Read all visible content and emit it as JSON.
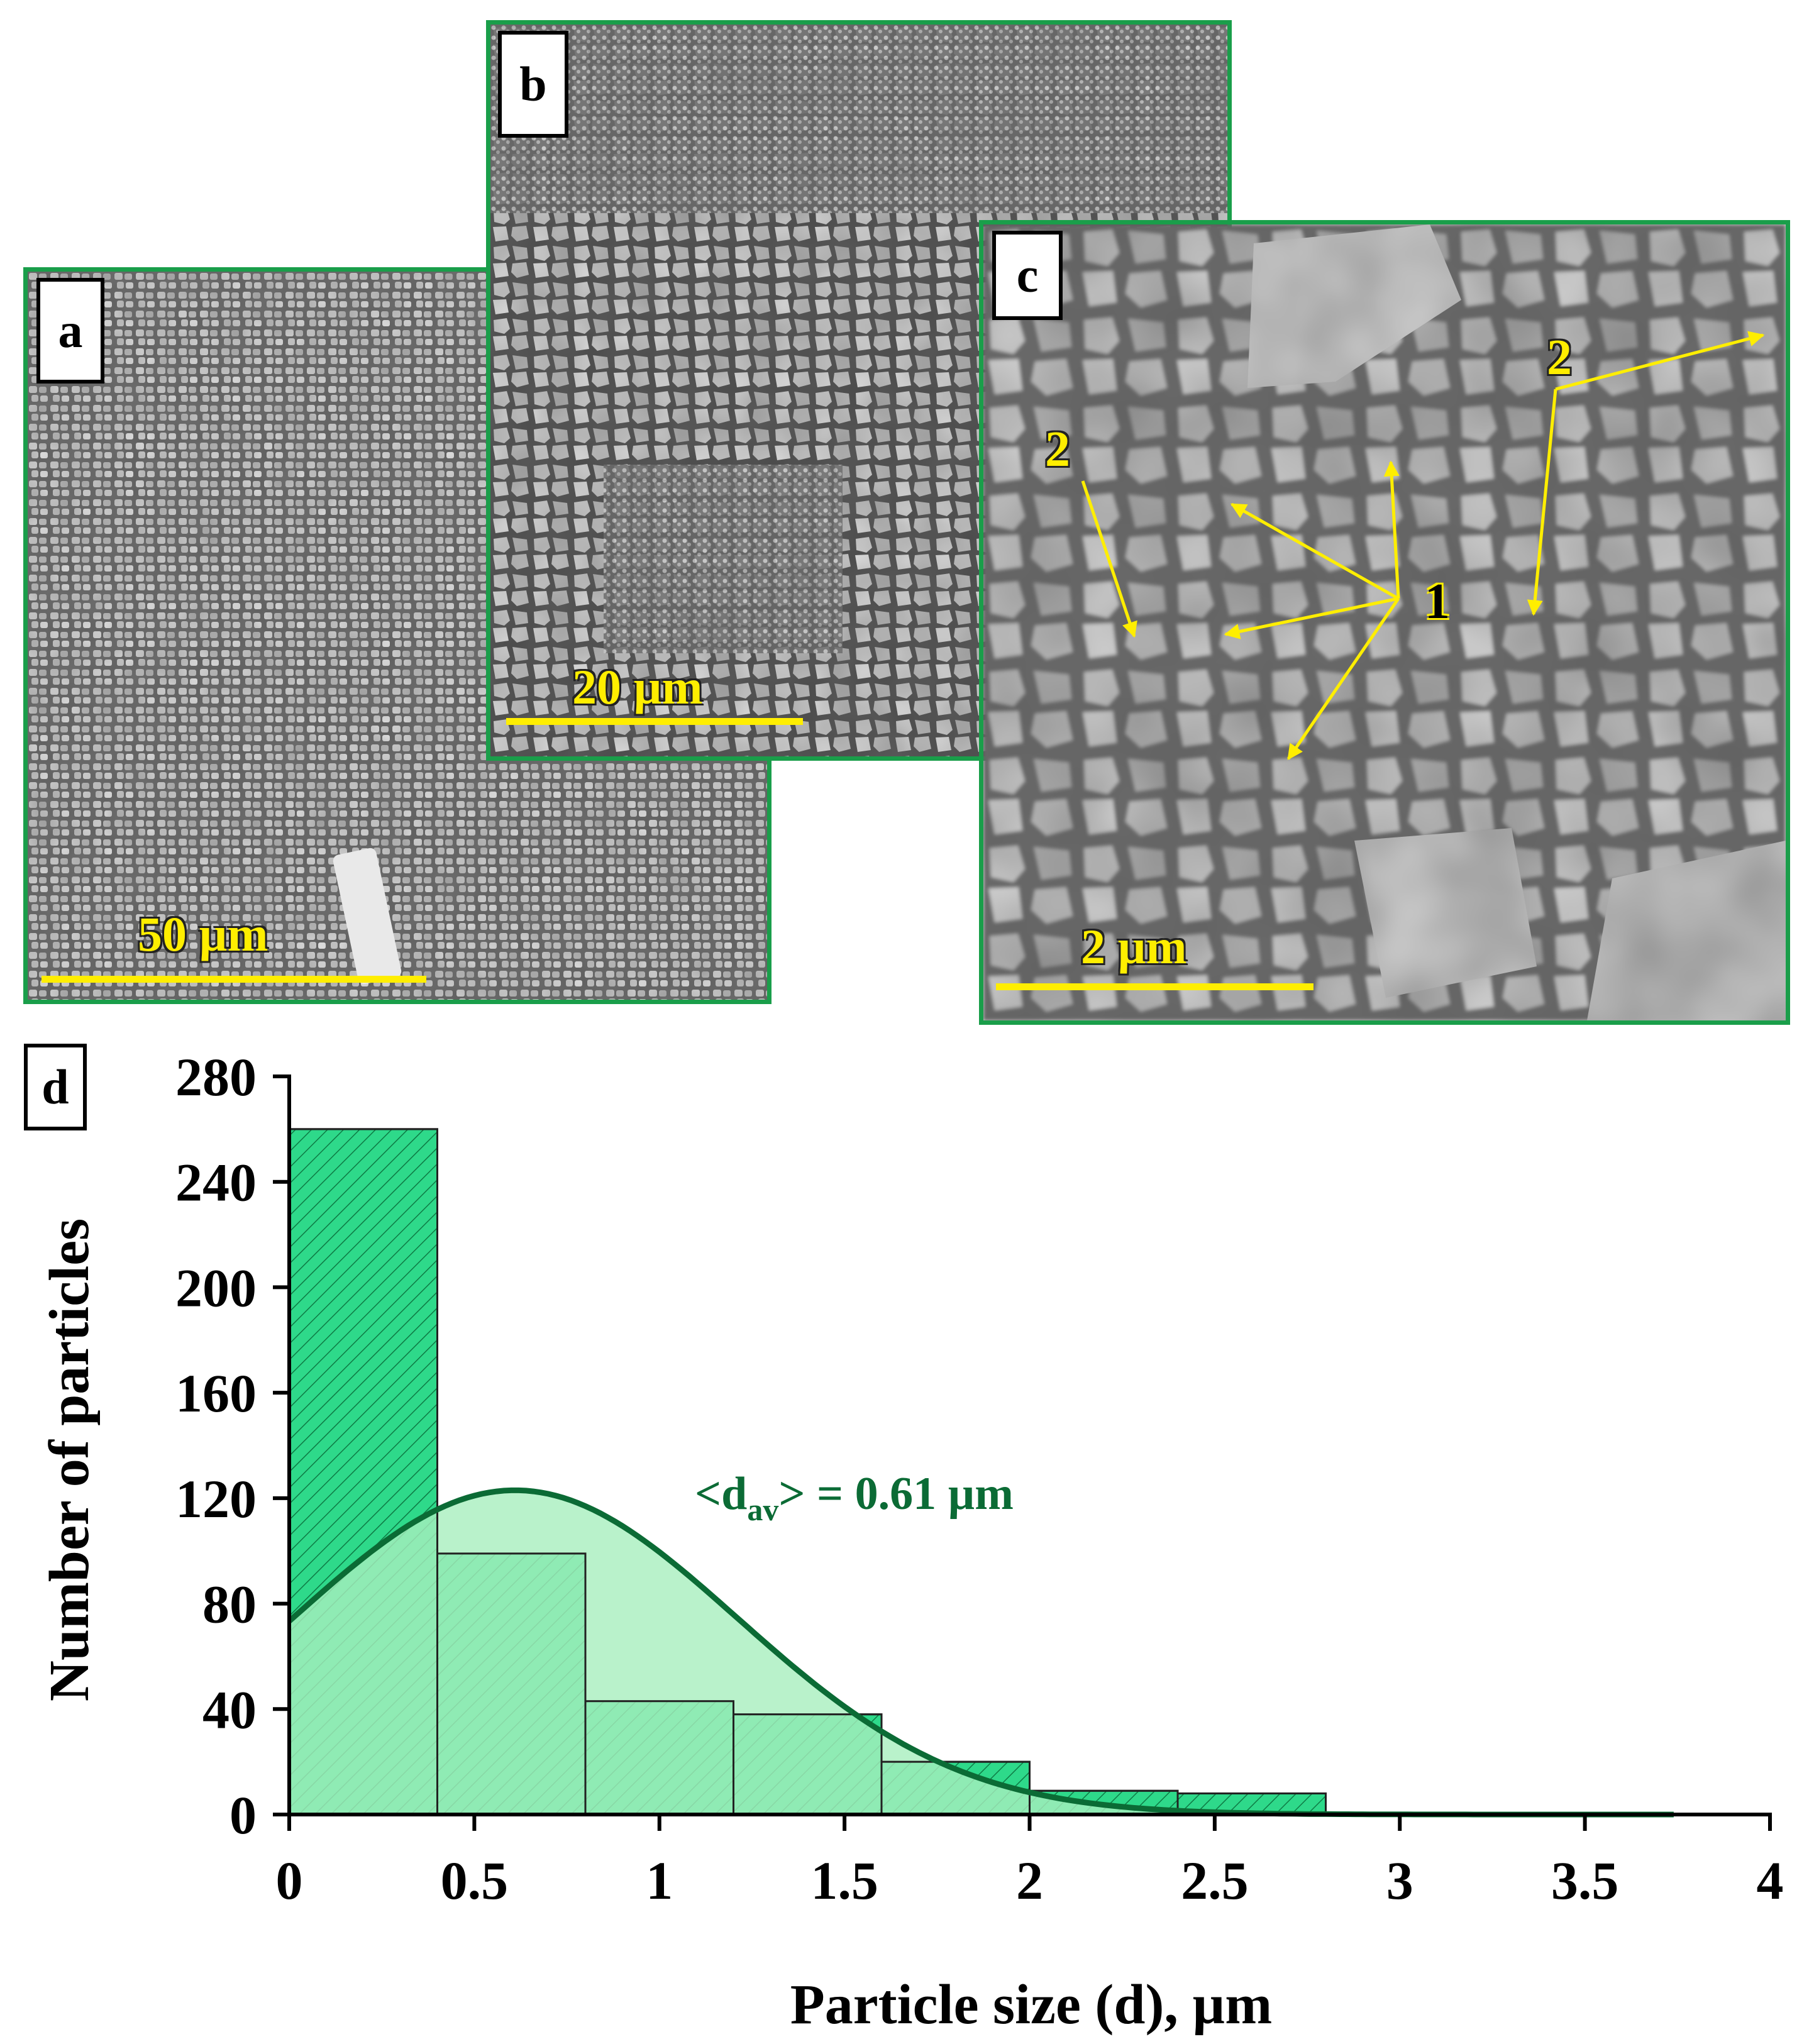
{
  "panels": {
    "a": {
      "label": "a",
      "scalebar": "50 µm"
    },
    "b": {
      "label": "b",
      "scalebar": "20 µm"
    },
    "c": {
      "label": "c",
      "scalebar": "2 µm",
      "markers": {
        "one": "1",
        "two_left": "2",
        "two_right": "2"
      }
    },
    "d": {
      "label": "d"
    }
  },
  "colors": {
    "panel_border": "#1a9e4a",
    "scalebar": "#ffee00",
    "annotation_arrow": "#ffee00",
    "hist_fill": "#2ed98a",
    "curve_fill": "#a8efbe",
    "curve_line": "#0b6b35"
  },
  "chart_data": {
    "type": "bar",
    "xlabel": "Particle size (d), µm",
    "ylabel": "Number of particles",
    "xlim": [
      0,
      4
    ],
    "ylim": [
      0,
      280
    ],
    "xticks": [
      "0",
      "0.5",
      "1",
      "1.5",
      "2",
      "2.5",
      "3",
      "3.5",
      "4"
    ],
    "yticks": [
      "0",
      "40",
      "80",
      "120",
      "160",
      "200",
      "240",
      "280"
    ],
    "bins": [
      {
        "from": 0.0,
        "to": 0.4,
        "count": 260
      },
      {
        "from": 0.4,
        "to": 0.8,
        "count": 99
      },
      {
        "from": 0.8,
        "to": 1.2,
        "count": 43
      },
      {
        "from": 1.2,
        "to": 1.6,
        "count": 38
      },
      {
        "from": 1.6,
        "to": 2.0,
        "count": 20
      },
      {
        "from": 2.0,
        "to": 2.4,
        "count": 9
      },
      {
        "from": 2.4,
        "to": 2.8,
        "count": 8
      }
    ],
    "fit": {
      "type": "gaussian",
      "mean": 0.61,
      "amplitude": 123,
      "sigma": 0.6,
      "x_end": 3.75
    },
    "annotation": {
      "prefix": "<d",
      "subscript": "av",
      "suffix": "> = 0.61 µm"
    }
  }
}
